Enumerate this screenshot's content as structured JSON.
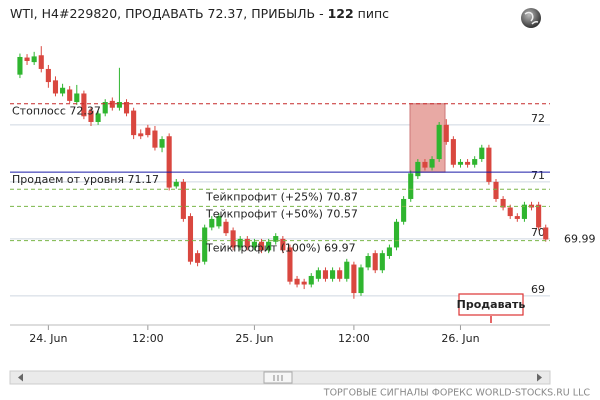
{
  "chart_data": {
    "type": "candlestick",
    "title": "WTI, H4#229820, ПРОДАВАТЬ 72.37, ПРИБЫЛЬ -",
    "profit": 122,
    "profit_unit": "пипс",
    "up_color": "#2fb52f",
    "down_color": "#d9473f",
    "ohlc": [
      [
        72.88,
        73.25,
        72.82,
        73.19
      ],
      [
        73.18,
        73.24,
        73.05,
        73.12
      ],
      [
        73.1,
        73.28,
        73.05,
        73.2
      ],
      [
        73.22,
        73.38,
        72.92,
        72.98
      ],
      [
        72.98,
        73.05,
        72.65,
        72.75
      ],
      [
        72.78,
        72.85,
        72.5,
        72.55
      ],
      [
        72.55,
        72.72,
        72.5,
        72.65
      ],
      [
        72.62,
        72.68,
        72.38,
        72.42
      ],
      [
        72.4,
        72.7,
        72.35,
        72.55
      ],
      [
        72.55,
        72.6,
        72.1,
        72.15
      ],
      [
        72.25,
        72.3,
        71.98,
        72.05
      ],
      [
        72.05,
        72.25,
        72.0,
        72.2
      ],
      [
        72.2,
        72.45,
        72.15,
        72.4
      ],
      [
        72.42,
        72.48,
        72.25,
        72.3
      ],
      [
        72.3,
        73.0,
        72.25,
        72.4
      ],
      [
        72.4,
        72.45,
        72.15,
        72.2
      ],
      [
        72.25,
        72.3,
        71.75,
        71.82
      ],
      [
        71.85,
        71.92,
        71.75,
        71.8
      ],
      [
        71.95,
        72.0,
        71.78,
        71.82
      ],
      [
        71.9,
        71.98,
        71.55,
        71.6
      ],
      [
        71.6,
        71.8,
        71.52,
        71.75
      ],
      [
        71.8,
        71.85,
        70.85,
        70.9
      ],
      [
        70.92,
        71.05,
        70.88,
        71.0
      ],
      [
        71.0,
        71.05,
        70.3,
        70.35
      ],
      [
        70.4,
        70.45,
        69.55,
        69.6
      ],
      [
        69.75,
        69.8,
        69.52,
        69.58
      ],
      [
        69.6,
        70.25,
        69.55,
        70.2
      ],
      [
        70.2,
        70.4,
        70.15,
        70.35
      ],
      [
        70.22,
        70.45,
        70.18,
        70.4
      ],
      [
        70.3,
        70.35,
        70.05,
        70.1
      ],
      [
        70.15,
        70.2,
        69.8,
        69.85
      ],
      [
        69.85,
        70.05,
        69.8,
        70.0
      ],
      [
        70.0,
        70.05,
        69.8,
        69.85
      ],
      [
        69.85,
        70.0,
        69.8,
        69.95
      ],
      [
        69.95,
        70.0,
        69.75,
        69.8
      ],
      [
        69.8,
        70.0,
        69.75,
        69.95
      ],
      [
        69.95,
        70.1,
        69.9,
        70.05
      ],
      [
        70.0,
        70.05,
        69.75,
        69.8
      ],
      [
        69.85,
        69.9,
        69.2,
        69.25
      ],
      [
        69.3,
        69.35,
        69.15,
        69.2
      ],
      [
        69.25,
        69.3,
        69.12,
        69.2
      ],
      [
        69.2,
        69.4,
        69.15,
        69.35
      ],
      [
        69.3,
        69.5,
        69.25,
        69.45
      ],
      [
        69.45,
        69.5,
        69.25,
        69.3
      ],
      [
        69.3,
        69.5,
        69.25,
        69.45
      ],
      [
        69.45,
        69.5,
        69.25,
        69.3
      ],
      [
        69.3,
        69.65,
        69.25,
        69.6
      ],
      [
        69.55,
        69.6,
        68.95,
        69.05
      ],
      [
        69.05,
        69.55,
        69.0,
        69.5
      ],
      [
        69.5,
        69.75,
        69.45,
        69.7
      ],
      [
        69.75,
        69.8,
        69.4,
        69.45
      ],
      [
        69.45,
        69.8,
        69.4,
        69.75
      ],
      [
        69.7,
        69.9,
        69.65,
        69.85
      ],
      [
        69.85,
        70.35,
        69.8,
        70.3
      ],
      [
        70.3,
        70.75,
        70.25,
        70.7
      ],
      [
        70.7,
        71.2,
        70.65,
        71.15
      ],
      [
        71.1,
        71.4,
        71.05,
        71.35
      ],
      [
        71.35,
        71.4,
        71.2,
        71.25
      ],
      [
        71.25,
        71.45,
        71.2,
        71.4
      ],
      [
        71.4,
        72.05,
        71.35,
        72.0
      ],
      [
        72.0,
        72.1,
        71.65,
        71.7
      ],
      [
        71.75,
        71.8,
        71.25,
        71.3
      ],
      [
        71.3,
        71.4,
        71.25,
        71.35
      ],
      [
        71.35,
        71.4,
        71.25,
        71.3
      ],
      [
        71.3,
        71.45,
        71.25,
        71.4
      ],
      [
        71.4,
        71.65,
        71.35,
        71.6
      ],
      [
        71.6,
        71.65,
        70.95,
        71.0
      ],
      [
        71.0,
        71.05,
        70.65,
        70.7
      ],
      [
        70.7,
        70.75,
        70.5,
        70.55
      ],
      [
        70.55,
        70.6,
        70.35,
        70.4
      ],
      [
        70.4,
        70.45,
        70.3,
        70.35
      ],
      [
        70.35,
        70.65,
        70.3,
        70.6
      ],
      [
        70.6,
        70.65,
        70.5,
        70.55
      ],
      [
        70.6,
        70.65,
        70.15,
        70.2
      ],
      [
        70.2,
        70.25,
        69.95,
        69.99
      ]
    ],
    "xlim": [
      -1.4,
      74.6
    ],
    "xticks": [
      {
        "value": 4,
        "label": "24. Jun"
      },
      {
        "value": 18,
        "label": "12:00"
      },
      {
        "value": 33,
        "label": "25. Jun"
      },
      {
        "value": 47,
        "label": "12:00"
      },
      {
        "value": 62,
        "label": "26. Jun"
      }
    ],
    "ylim": [
      68.49,
      73.4
    ],
    "yticks": [
      72,
      71,
      70,
      69
    ],
    "grid": true,
    "levels": [
      {
        "label": "Стоплосс 72.37",
        "value": 72.37,
        "color": "#c62828",
        "style": "dashed"
      },
      {
        "label": "Продаем от уровня 71.17",
        "value": 71.17,
        "color": "#1a1aa6",
        "style": "solid"
      },
      {
        "label": "Тейкпрофит (+25%) 70.87",
        "value": 70.87,
        "color": "#7ab648",
        "style": "dashed"
      },
      {
        "label": "Тейкпрофит (+50%) 70.57",
        "value": 70.57,
        "color": "#7ab648",
        "style": "dashed"
      },
      {
        "label": "Тейкпрофит (100%) 69.97",
        "value": 69.97,
        "color": "#7ab648",
        "style": "dashed"
      }
    ],
    "zone_color": "#e8a9a4",
    "last_price": 69.99,
    "button": "Продавать",
    "footer": "ТОРГОВЫЕ СИГНАЛЫ ФОРЕКС WORLD-STOCKS.RU LLC"
  }
}
